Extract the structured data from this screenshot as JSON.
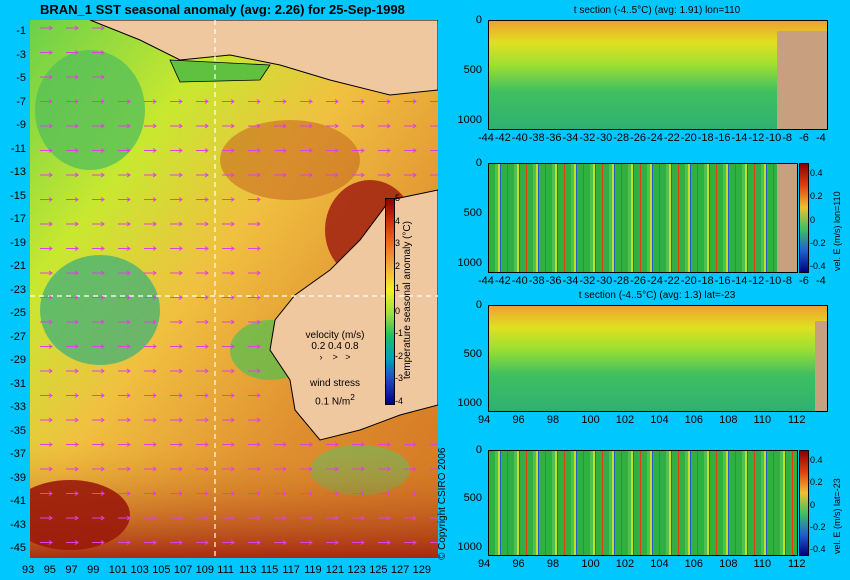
{
  "main_map": {
    "title": "BRAN_1 SST seasonal anomaly (avg: 2.26) for 25-Sep-1998",
    "lat_ticks": [
      "-1",
      "-3",
      "-5",
      "-7",
      "-9",
      "-11",
      "-13",
      "-15",
      "-17",
      "-19",
      "-21",
      "-23",
      "-25",
      "-27",
      "-29",
      "-31",
      "-33",
      "-35",
      "-37",
      "-39",
      "-41",
      "-43",
      "-45"
    ],
    "lon_ticks": [
      "93",
      "95",
      "97",
      "99",
      "101",
      "103",
      "105",
      "107",
      "109",
      "111",
      "113",
      "115",
      "117",
      "119",
      "121",
      "123",
      "125",
      "127",
      "129"
    ],
    "colorbar": {
      "label": "temperature seasonal anomaly (°C)",
      "ticks": [
        "5",
        "4",
        "3",
        "2",
        "1",
        "0",
        "-1",
        "-2",
        "-3",
        "-4"
      ],
      "range": [
        -4,
        5
      ]
    },
    "legend": {
      "velocity_label": "velocity (m/s)",
      "velocity_values": "0.2 0.4 0.8",
      "wind_label": "wind stress",
      "wind_value": "0.1 N/m",
      "wind_sup": "2"
    },
    "section_lines": {
      "lon": 110,
      "lat": -23
    },
    "colors": {
      "land": "#f0c8a0",
      "background": "#00c8ff",
      "arrows": "#e040e0"
    }
  },
  "panels": [
    {
      "title": "t section (-4..5°C) (avg: 1.91) lon=110",
      "y_ticks": [
        "0",
        "500",
        "1000"
      ],
      "x_ticks": [
        "-44",
        "-42",
        "-40",
        "-38",
        "-36",
        "-34",
        "-32",
        "-30",
        "-28",
        "-26",
        "-24",
        "-22",
        "-20",
        "-18",
        "-16",
        "-14",
        "-12",
        "-10",
        "-8",
        "-6",
        "-4"
      ],
      "colorbar": null
    },
    {
      "title": "",
      "y_ticks": [
        "0",
        "500",
        "1000"
      ],
      "x_ticks": [
        "-44",
        "-42",
        "-40",
        "-38",
        "-36",
        "-34",
        "-32",
        "-30",
        "-28",
        "-26",
        "-24",
        "-22",
        "-20",
        "-18",
        "-16",
        "-14",
        "-12",
        "-10",
        "-8",
        "-6",
        "-4"
      ],
      "colorbar": {
        "label": "vel. E (m/s) lon=110",
        "ticks": [
          "0.4",
          "0.2",
          "0",
          "-0.2",
          "-0.4"
        ]
      }
    },
    {
      "title": "t section (-4..5°C) (avg: 1.3) lat=-23",
      "y_ticks": [
        "0",
        "500",
        "1000"
      ],
      "x_ticks": [
        "94",
        "96",
        "98",
        "100",
        "102",
        "104",
        "106",
        "108",
        "110",
        "112"
      ],
      "colorbar": null
    },
    {
      "title": "",
      "y_ticks": [
        "0",
        "500",
        "1000"
      ],
      "x_ticks": [
        "94",
        "96",
        "98",
        "100",
        "102",
        "104",
        "106",
        "108",
        "110",
        "112"
      ],
      "colorbar": {
        "label": "vel. E (m/s) lat=-23",
        "ticks": [
          "0.4",
          "0.2",
          "0",
          "-0.2",
          "-0.4"
        ]
      }
    }
  ],
  "copyright": "© Copyright CSIRO 2006"
}
